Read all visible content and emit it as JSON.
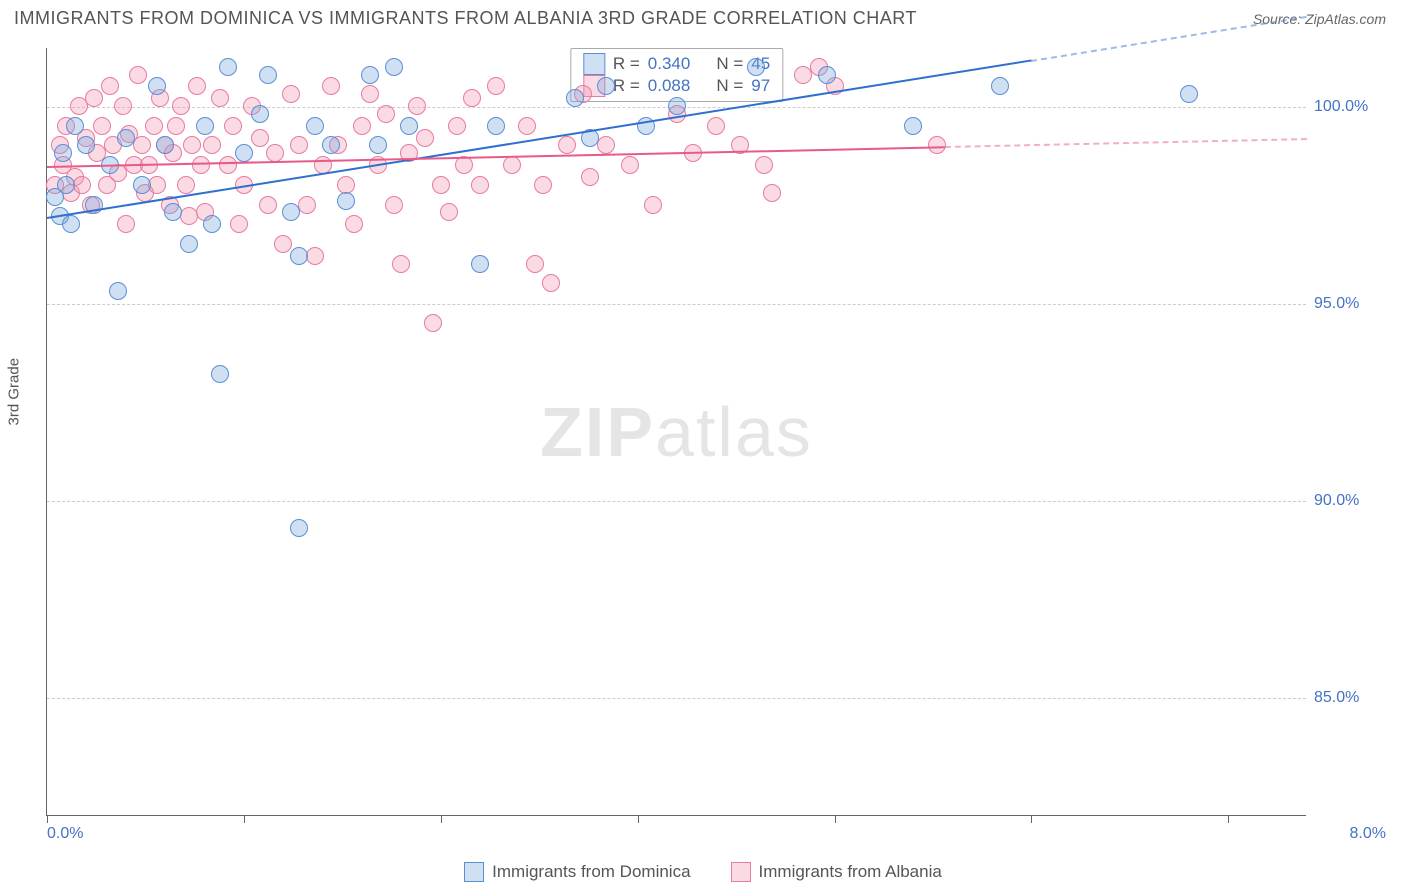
{
  "title": "IMMIGRANTS FROM DOMINICA VS IMMIGRANTS FROM ALBANIA 3RD GRADE CORRELATION CHART",
  "source_prefix": "Source: ",
  "source_name": "ZipAtlas.com",
  "ylabel": "3rd Grade",
  "watermark_bold": "ZIP",
  "watermark_light": "atlas",
  "chart": {
    "type": "scatter",
    "xlim": [
      0.0,
      8.0
    ],
    "ylim": [
      82.0,
      101.5
    ],
    "xticks": [
      0.0,
      1.25,
      2.5,
      3.75,
      5.0,
      6.25,
      7.5
    ],
    "yticks": [
      85.0,
      90.0,
      95.0,
      100.0
    ],
    "ytick_labels": [
      "85.0%",
      "90.0%",
      "95.0%",
      "100.0%"
    ],
    "xlim_labels": [
      "0.0%",
      "8.0%"
    ],
    "grid_color": "#cccccc",
    "axis_color": "#666666",
    "background": "#ffffff",
    "marker_radius": 9,
    "label_color": "#4472c4",
    "series": [
      {
        "id": "dominica",
        "label": "Immigrants from Dominica",
        "fill": "rgba(120,165,220,0.35)",
        "stroke": "#5b8fd6",
        "line_color": "#2e6fd0",
        "R": "0.340",
        "N": "45",
        "trend": {
          "x1": 0.0,
          "y1": 97.2,
          "x2": 6.25,
          "y2": 101.2,
          "dash_to_x": 8.0
        },
        "points": [
          [
            0.05,
            97.7
          ],
          [
            0.08,
            97.2
          ],
          [
            0.1,
            98.8
          ],
          [
            0.12,
            98.0
          ],
          [
            0.15,
            97.0
          ],
          [
            0.18,
            99.5
          ],
          [
            0.25,
            99.0
          ],
          [
            0.3,
            97.5
          ],
          [
            0.4,
            98.5
          ],
          [
            0.45,
            95.3
          ],
          [
            0.5,
            99.2
          ],
          [
            0.6,
            98.0
          ],
          [
            0.7,
            100.5
          ],
          [
            0.75,
            99.0
          ],
          [
            0.8,
            97.3
          ],
          [
            0.9,
            96.5
          ],
          [
            1.0,
            99.5
          ],
          [
            1.05,
            97.0
          ],
          [
            1.1,
            93.2
          ],
          [
            1.15,
            101.0
          ],
          [
            1.25,
            98.8
          ],
          [
            1.35,
            99.8
          ],
          [
            1.4,
            100.8
          ],
          [
            1.55,
            97.3
          ],
          [
            1.6,
            96.2
          ],
          [
            1.6,
            89.3
          ],
          [
            1.7,
            99.5
          ],
          [
            1.8,
            99.0
          ],
          [
            1.9,
            97.6
          ],
          [
            2.05,
            100.8
          ],
          [
            2.1,
            99.0
          ],
          [
            2.2,
            101.0
          ],
          [
            2.3,
            99.5
          ],
          [
            2.75,
            96.0
          ],
          [
            2.85,
            99.5
          ],
          [
            3.35,
            100.2
          ],
          [
            3.45,
            99.2
          ],
          [
            3.55,
            100.5
          ],
          [
            3.8,
            99.5
          ],
          [
            4.0,
            100.0
          ],
          [
            4.5,
            101.0
          ],
          [
            4.95,
            100.8
          ],
          [
            5.5,
            99.5
          ],
          [
            6.05,
            100.5
          ],
          [
            7.25,
            100.3
          ]
        ]
      },
      {
        "id": "albania",
        "label": "Immigrants from Albania",
        "fill": "rgba(240,150,175,0.35)",
        "stroke": "#e87ba0",
        "line_color": "#e85a8a",
        "R": "0.088",
        "N": "97",
        "trend": {
          "x1": 0.0,
          "y1": 98.5,
          "x2": 5.7,
          "y2": 99.0,
          "dash_to_x": 8.0
        },
        "points": [
          [
            0.05,
            98.0
          ],
          [
            0.08,
            99.0
          ],
          [
            0.1,
            98.5
          ],
          [
            0.12,
            99.5
          ],
          [
            0.15,
            97.8
          ],
          [
            0.18,
            98.2
          ],
          [
            0.2,
            100.0
          ],
          [
            0.22,
            98.0
          ],
          [
            0.25,
            99.2
          ],
          [
            0.28,
            97.5
          ],
          [
            0.3,
            100.2
          ],
          [
            0.32,
            98.8
          ],
          [
            0.35,
            99.5
          ],
          [
            0.38,
            98.0
          ],
          [
            0.4,
            100.5
          ],
          [
            0.42,
            99.0
          ],
          [
            0.45,
            98.3
          ],
          [
            0.48,
            100.0
          ],
          [
            0.5,
            97.0
          ],
          [
            0.52,
            99.3
          ],
          [
            0.55,
            98.5
          ],
          [
            0.58,
            100.8
          ],
          [
            0.6,
            99.0
          ],
          [
            0.62,
            97.8
          ],
          [
            0.65,
            98.5
          ],
          [
            0.68,
            99.5
          ],
          [
            0.7,
            98.0
          ],
          [
            0.72,
            100.2
          ],
          [
            0.75,
            99.0
          ],
          [
            0.78,
            97.5
          ],
          [
            0.8,
            98.8
          ],
          [
            0.82,
            99.5
          ],
          [
            0.85,
            100.0
          ],
          [
            0.88,
            98.0
          ],
          [
            0.9,
            97.2
          ],
          [
            0.92,
            99.0
          ],
          [
            0.95,
            100.5
          ],
          [
            0.98,
            98.5
          ],
          [
            1.0,
            97.3
          ],
          [
            1.05,
            99.0
          ],
          [
            1.1,
            100.2
          ],
          [
            1.15,
            98.5
          ],
          [
            1.18,
            99.5
          ],
          [
            1.22,
            97.0
          ],
          [
            1.25,
            98.0
          ],
          [
            1.3,
            100.0
          ],
          [
            1.35,
            99.2
          ],
          [
            1.4,
            97.5
          ],
          [
            1.45,
            98.8
          ],
          [
            1.5,
            96.5
          ],
          [
            1.55,
            100.3
          ],
          [
            1.6,
            99.0
          ],
          [
            1.65,
            97.5
          ],
          [
            1.7,
            96.2
          ],
          [
            1.75,
            98.5
          ],
          [
            1.8,
            100.5
          ],
          [
            1.85,
            99.0
          ],
          [
            1.9,
            98.0
          ],
          [
            1.95,
            97.0
          ],
          [
            2.0,
            99.5
          ],
          [
            2.05,
            100.3
          ],
          [
            2.1,
            98.5
          ],
          [
            2.15,
            99.8
          ],
          [
            2.2,
            97.5
          ],
          [
            2.25,
            96.0
          ],
          [
            2.3,
            98.8
          ],
          [
            2.35,
            100.0
          ],
          [
            2.4,
            99.2
          ],
          [
            2.45,
            94.5
          ],
          [
            2.5,
            98.0
          ],
          [
            2.55,
            97.3
          ],
          [
            2.6,
            99.5
          ],
          [
            2.65,
            98.5
          ],
          [
            2.7,
            100.2
          ],
          [
            2.75,
            98.0
          ],
          [
            2.85,
            100.5
          ],
          [
            2.95,
            98.5
          ],
          [
            3.05,
            99.5
          ],
          [
            3.1,
            96.0
          ],
          [
            3.15,
            98.0
          ],
          [
            3.2,
            95.5
          ],
          [
            3.3,
            99.0
          ],
          [
            3.4,
            100.3
          ],
          [
            3.45,
            98.2
          ],
          [
            3.55,
            99.0
          ],
          [
            3.7,
            98.5
          ],
          [
            3.85,
            97.5
          ],
          [
            4.0,
            99.8
          ],
          [
            4.1,
            98.8
          ],
          [
            4.25,
            99.5
          ],
          [
            4.4,
            99.0
          ],
          [
            4.55,
            98.5
          ],
          [
            4.6,
            97.8
          ],
          [
            4.8,
            100.8
          ],
          [
            4.9,
            101.0
          ],
          [
            5.0,
            100.5
          ],
          [
            5.65,
            99.0
          ]
        ]
      }
    ]
  },
  "legend_stats": {
    "r_label": "R =",
    "n_label": "N ="
  },
  "bottom_legend": {
    "series": [
      "dominica",
      "albania"
    ]
  }
}
